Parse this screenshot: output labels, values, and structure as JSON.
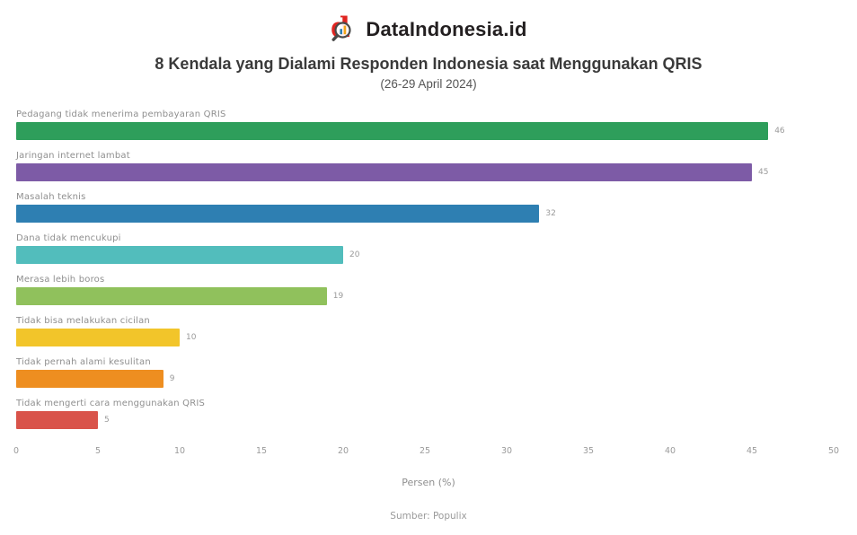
{
  "header": {
    "brand": "DataIndonesia.id",
    "title": "8 Kendala yang Dialami Responden Indonesia saat Menggunakan QRIS",
    "subtitle": "(26-29 April 2024)"
  },
  "icons": {
    "logo": "magnifier-d-logo-icon"
  },
  "brand_colors": {
    "logo_red": "#e02420",
    "logo_glass": "#4a4a4a"
  },
  "chart_data": {
    "type": "bar",
    "orientation": "horizontal",
    "title": "8 Kendala yang Dialami Responden Indonesia saat Menggunakan QRIS",
    "subtitle": "(26-29 April 2024)",
    "categories": [
      "Pedagang tidak menerima pembayaran QRIS",
      "Jaringan internet lambat",
      "Masalah teknis",
      "Dana tidak mencukupi",
      "Merasa lebih boros",
      "Tidak bisa melakukan cicilan",
      "Tidak pernah alami kesulitan",
      "Tidak mengerti cara menggunakan QRIS"
    ],
    "values": [
      46,
      45,
      32,
      20,
      19,
      10,
      9,
      5
    ],
    "bar_colors": [
      "#2e9e5b",
      "#7d5ba6",
      "#2e7fb2",
      "#52bdbc",
      "#90c15c",
      "#f2c52a",
      "#ee8e20",
      "#d9534a"
    ],
    "xlabel": "Persen (%)",
    "xlim": [
      0,
      50
    ],
    "x_ticks": [
      0,
      5,
      10,
      15,
      20,
      25,
      30,
      35,
      40,
      45,
      50
    ],
    "grid": false,
    "legend": "none",
    "value_labels_shown": true,
    "source": "Sumber: Populix"
  }
}
